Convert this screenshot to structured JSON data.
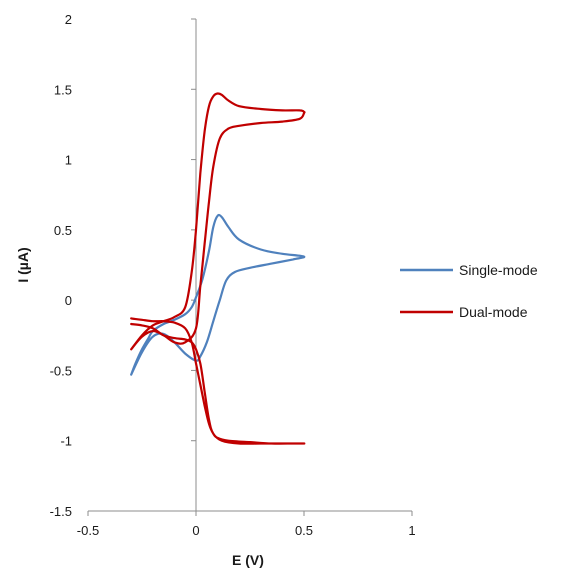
{
  "chart_data": {
    "type": "line",
    "title": "",
    "xlabel": "E (V)",
    "ylabel": "I (µA)",
    "xlim": [
      -0.5,
      1
    ],
    "ylim": [
      -1.5,
      2
    ],
    "x_ticks": [
      -0.5,
      0,
      0.5,
      1
    ],
    "x_tick_labels": [
      "-0.5",
      "0",
      "0.5",
      "1"
    ],
    "y_ticks": [
      -1.5,
      -1,
      -0.5,
      0,
      0.5,
      1,
      1.5,
      2
    ],
    "y_tick_labels": [
      "-1.5",
      "-1",
      "-0.5",
      "0",
      "0.5",
      "1",
      "1.5",
      "2"
    ],
    "grid": false,
    "legend_position": "right",
    "series": [
      {
        "name": "Single-mode",
        "color": "#4f81bd",
        "points": [
          [
            -0.3,
            -0.53
          ],
          [
            -0.28,
            -0.45
          ],
          [
            -0.25,
            -0.35
          ],
          [
            -0.22,
            -0.27
          ],
          [
            -0.2,
            -0.22
          ],
          [
            -0.15,
            -0.17
          ],
          [
            -0.1,
            -0.14
          ],
          [
            -0.05,
            -0.1
          ],
          [
            -0.02,
            -0.05
          ],
          [
            0.0,
            0.02
          ],
          [
            0.03,
            0.15
          ],
          [
            0.06,
            0.35
          ],
          [
            0.08,
            0.52
          ],
          [
            0.1,
            0.6
          ],
          [
            0.12,
            0.59
          ],
          [
            0.15,
            0.52
          ],
          [
            0.2,
            0.43
          ],
          [
            0.3,
            0.36
          ],
          [
            0.4,
            0.33
          ],
          [
            0.5,
            0.31
          ],
          [
            0.45,
            0.29
          ],
          [
            0.35,
            0.26
          ],
          [
            0.25,
            0.23
          ],
          [
            0.18,
            0.2
          ],
          [
            0.14,
            0.14
          ],
          [
            0.11,
            0.0
          ],
          [
            0.08,
            -0.15
          ],
          [
            0.05,
            -0.3
          ],
          [
            0.02,
            -0.4
          ],
          [
            0.0,
            -0.43
          ],
          [
            -0.05,
            -0.38
          ],
          [
            -0.1,
            -0.3
          ],
          [
            -0.15,
            -0.24
          ],
          [
            -0.2,
            -0.26
          ],
          [
            -0.25,
            -0.37
          ],
          [
            -0.3,
            -0.53
          ]
        ]
      },
      {
        "name": "Dual-mode",
        "color": "#c00000",
        "cycles": [
          [
            [
              -0.3,
              -0.35
            ],
            [
              -0.25,
              -0.25
            ],
            [
              -0.2,
              -0.18
            ],
            [
              -0.15,
              -0.15
            ],
            [
              -0.1,
              -0.12
            ],
            [
              -0.05,
              -0.05
            ],
            [
              -0.02,
              0.2
            ],
            [
              0.0,
              0.5
            ],
            [
              0.02,
              0.9
            ],
            [
              0.04,
              1.2
            ],
            [
              0.06,
              1.38
            ],
            [
              0.08,
              1.45
            ],
            [
              0.1,
              1.47
            ],
            [
              0.12,
              1.46
            ],
            [
              0.15,
              1.42
            ],
            [
              0.2,
              1.38
            ],
            [
              0.3,
              1.36
            ],
            [
              0.4,
              1.35
            ],
            [
              0.48,
              1.35
            ],
            [
              0.5,
              1.34
            ],
            [
              0.5,
              1.33
            ],
            [
              0.48,
              1.29
            ],
            [
              0.4,
              1.27
            ],
            [
              0.3,
              1.26
            ],
            [
              0.2,
              1.24
            ],
            [
              0.15,
              1.22
            ],
            [
              0.11,
              1.15
            ],
            [
              0.08,
              0.95
            ],
            [
              0.06,
              0.7
            ],
            [
              0.04,
              0.4
            ],
            [
              0.02,
              0.1
            ],
            [
              0.0,
              -0.2
            ],
            [
              -0.05,
              -0.3
            ],
            [
              -0.1,
              -0.3
            ],
            [
              -0.15,
              -0.25
            ],
            [
              -0.2,
              -0.22
            ],
            [
              -0.25,
              -0.26
            ],
            [
              -0.3,
              -0.35
            ]
          ],
          [
            [
              -0.3,
              -0.13
            ],
            [
              -0.25,
              -0.14
            ],
            [
              -0.2,
              -0.15
            ],
            [
              -0.15,
              -0.15
            ],
            [
              -0.1,
              -0.16
            ],
            [
              -0.05,
              -0.2
            ],
            [
              -0.02,
              -0.3
            ],
            [
              0.0,
              -0.45
            ],
            [
              0.02,
              -0.6
            ],
            [
              0.04,
              -0.75
            ],
            [
              0.06,
              -0.88
            ],
            [
              0.08,
              -0.95
            ],
            [
              0.1,
              -0.98
            ],
            [
              0.15,
              -1.0
            ],
            [
              0.25,
              -1.01
            ],
            [
              0.35,
              -1.02
            ],
            [
              0.45,
              -1.02
            ],
            [
              0.5,
              -1.02
            ],
            [
              0.48,
              -1.02
            ],
            [
              0.4,
              -1.02
            ],
            [
              0.3,
              -1.02
            ],
            [
              0.2,
              -1.02
            ],
            [
              0.12,
              -1.0
            ],
            [
              0.08,
              -0.95
            ],
            [
              0.06,
              -0.85
            ],
            [
              0.04,
              -0.65
            ],
            [
              0.02,
              -0.45
            ],
            [
              0.0,
              -0.35
            ],
            [
              -0.02,
              -0.3
            ],
            [
              -0.05,
              -0.28
            ],
            [
              -0.1,
              -0.27
            ],
            [
              -0.15,
              -0.25
            ],
            [
              -0.2,
              -0.2
            ],
            [
              -0.25,
              -0.18
            ],
            [
              -0.3,
              -0.17
            ]
          ]
        ]
      }
    ]
  }
}
